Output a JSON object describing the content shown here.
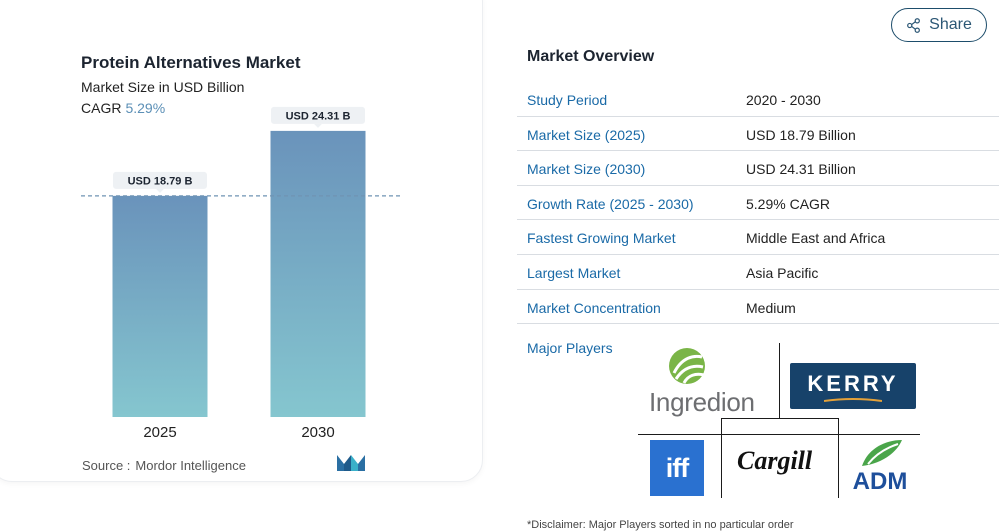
{
  "chart_card": {
    "title": "Protein Alternatives Market",
    "subtitle": "Market Size in USD Billion",
    "cagr_label": "CAGR",
    "cagr_value": "5.29%",
    "source_label": "Source :",
    "source_value": "Mordor Intelligence",
    "accent_color": "#5b8fb6",
    "logo_icon": "mordor-intelligence-logo"
  },
  "chart_data": {
    "type": "bar",
    "categories": [
      "2025",
      "2030"
    ],
    "values": [
      18.79,
      24.31
    ],
    "value_labels": [
      "USD 18.79 B",
      "USD 24.31 B"
    ],
    "title": "Protein Alternatives Market",
    "subtitle": "Market Size in USD Billion",
    "xlabel": "",
    "ylabel": "",
    "ylim": [
      0,
      26
    ],
    "grid": false,
    "reference_line": 18.79,
    "bar_gradient": [
      "#6a93bb",
      "#85c6cf"
    ]
  },
  "share": {
    "label": "Share",
    "icon": "share-icon"
  },
  "overview": {
    "title": "Market Overview",
    "rows": [
      {
        "key": "Study Period",
        "value": "2020 - 2030"
      },
      {
        "key": "Market Size (2025)",
        "value": "USD 18.79 Billion"
      },
      {
        "key": "Market Size (2030)",
        "value": "USD 24.31 Billion"
      },
      {
        "key": "Growth Rate (2025 - 2030)",
        "value": "5.29% CAGR"
      },
      {
        "key": "Fastest Growing Market",
        "value": "Middle East and Africa"
      },
      {
        "key": "Largest Market",
        "value": "Asia Pacific"
      },
      {
        "key": "Market Concentration",
        "value": "Medium"
      }
    ],
    "major_players_label": "Major Players",
    "players": [
      "Ingredion",
      "KERRY",
      "iff",
      "Cargill",
      "ADM"
    ],
    "disclaimer": "*Disclaimer: Major Players sorted in no particular order"
  }
}
